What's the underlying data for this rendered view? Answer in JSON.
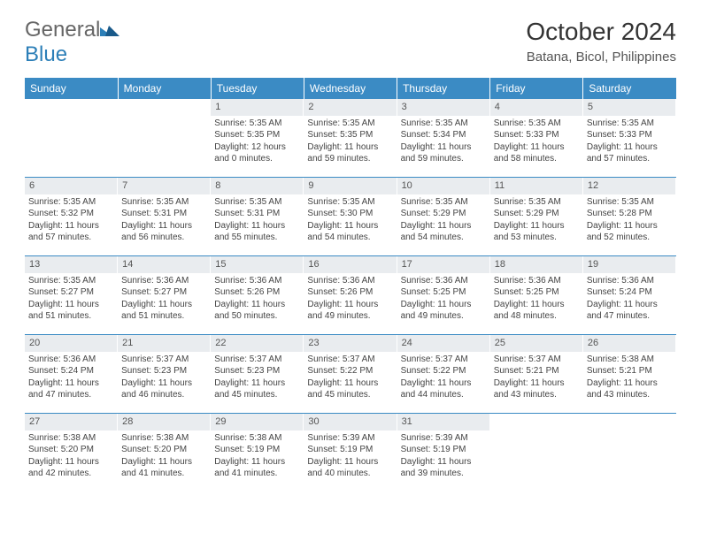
{
  "logo": {
    "text_general": "General",
    "text_blue": "Blue"
  },
  "title": "October 2024",
  "location": "Batana, Bicol, Philippines",
  "colors": {
    "header_bg": "#3b8bc4",
    "header_text": "#ffffff",
    "daynum_bg": "#e9ecef",
    "border": "#3b8bc4",
    "body_text": "#444"
  },
  "weekdays": [
    "Sunday",
    "Monday",
    "Tuesday",
    "Wednesday",
    "Thursday",
    "Friday",
    "Saturday"
  ],
  "weeks": [
    [
      null,
      null,
      {
        "n": "1",
        "sr": "Sunrise: 5:35 AM",
        "ss": "Sunset: 5:35 PM",
        "d1": "Daylight: 12 hours",
        "d2": "and 0 minutes."
      },
      {
        "n": "2",
        "sr": "Sunrise: 5:35 AM",
        "ss": "Sunset: 5:35 PM",
        "d1": "Daylight: 11 hours",
        "d2": "and 59 minutes."
      },
      {
        "n": "3",
        "sr": "Sunrise: 5:35 AM",
        "ss": "Sunset: 5:34 PM",
        "d1": "Daylight: 11 hours",
        "d2": "and 59 minutes."
      },
      {
        "n": "4",
        "sr": "Sunrise: 5:35 AM",
        "ss": "Sunset: 5:33 PM",
        "d1": "Daylight: 11 hours",
        "d2": "and 58 minutes."
      },
      {
        "n": "5",
        "sr": "Sunrise: 5:35 AM",
        "ss": "Sunset: 5:33 PM",
        "d1": "Daylight: 11 hours",
        "d2": "and 57 minutes."
      }
    ],
    [
      {
        "n": "6",
        "sr": "Sunrise: 5:35 AM",
        "ss": "Sunset: 5:32 PM",
        "d1": "Daylight: 11 hours",
        "d2": "and 57 minutes."
      },
      {
        "n": "7",
        "sr": "Sunrise: 5:35 AM",
        "ss": "Sunset: 5:31 PM",
        "d1": "Daylight: 11 hours",
        "d2": "and 56 minutes."
      },
      {
        "n": "8",
        "sr": "Sunrise: 5:35 AM",
        "ss": "Sunset: 5:31 PM",
        "d1": "Daylight: 11 hours",
        "d2": "and 55 minutes."
      },
      {
        "n": "9",
        "sr": "Sunrise: 5:35 AM",
        "ss": "Sunset: 5:30 PM",
        "d1": "Daylight: 11 hours",
        "d2": "and 54 minutes."
      },
      {
        "n": "10",
        "sr": "Sunrise: 5:35 AM",
        "ss": "Sunset: 5:29 PM",
        "d1": "Daylight: 11 hours",
        "d2": "and 54 minutes."
      },
      {
        "n": "11",
        "sr": "Sunrise: 5:35 AM",
        "ss": "Sunset: 5:29 PM",
        "d1": "Daylight: 11 hours",
        "d2": "and 53 minutes."
      },
      {
        "n": "12",
        "sr": "Sunrise: 5:35 AM",
        "ss": "Sunset: 5:28 PM",
        "d1": "Daylight: 11 hours",
        "d2": "and 52 minutes."
      }
    ],
    [
      {
        "n": "13",
        "sr": "Sunrise: 5:35 AM",
        "ss": "Sunset: 5:27 PM",
        "d1": "Daylight: 11 hours",
        "d2": "and 51 minutes."
      },
      {
        "n": "14",
        "sr": "Sunrise: 5:36 AM",
        "ss": "Sunset: 5:27 PM",
        "d1": "Daylight: 11 hours",
        "d2": "and 51 minutes."
      },
      {
        "n": "15",
        "sr": "Sunrise: 5:36 AM",
        "ss": "Sunset: 5:26 PM",
        "d1": "Daylight: 11 hours",
        "d2": "and 50 minutes."
      },
      {
        "n": "16",
        "sr": "Sunrise: 5:36 AM",
        "ss": "Sunset: 5:26 PM",
        "d1": "Daylight: 11 hours",
        "d2": "and 49 minutes."
      },
      {
        "n": "17",
        "sr": "Sunrise: 5:36 AM",
        "ss": "Sunset: 5:25 PM",
        "d1": "Daylight: 11 hours",
        "d2": "and 49 minutes."
      },
      {
        "n": "18",
        "sr": "Sunrise: 5:36 AM",
        "ss": "Sunset: 5:25 PM",
        "d1": "Daylight: 11 hours",
        "d2": "and 48 minutes."
      },
      {
        "n": "19",
        "sr": "Sunrise: 5:36 AM",
        "ss": "Sunset: 5:24 PM",
        "d1": "Daylight: 11 hours",
        "d2": "and 47 minutes."
      }
    ],
    [
      {
        "n": "20",
        "sr": "Sunrise: 5:36 AM",
        "ss": "Sunset: 5:24 PM",
        "d1": "Daylight: 11 hours",
        "d2": "and 47 minutes."
      },
      {
        "n": "21",
        "sr": "Sunrise: 5:37 AM",
        "ss": "Sunset: 5:23 PM",
        "d1": "Daylight: 11 hours",
        "d2": "and 46 minutes."
      },
      {
        "n": "22",
        "sr": "Sunrise: 5:37 AM",
        "ss": "Sunset: 5:23 PM",
        "d1": "Daylight: 11 hours",
        "d2": "and 45 minutes."
      },
      {
        "n": "23",
        "sr": "Sunrise: 5:37 AM",
        "ss": "Sunset: 5:22 PM",
        "d1": "Daylight: 11 hours",
        "d2": "and 45 minutes."
      },
      {
        "n": "24",
        "sr": "Sunrise: 5:37 AM",
        "ss": "Sunset: 5:22 PM",
        "d1": "Daylight: 11 hours",
        "d2": "and 44 minutes."
      },
      {
        "n": "25",
        "sr": "Sunrise: 5:37 AM",
        "ss": "Sunset: 5:21 PM",
        "d1": "Daylight: 11 hours",
        "d2": "and 43 minutes."
      },
      {
        "n": "26",
        "sr": "Sunrise: 5:38 AM",
        "ss": "Sunset: 5:21 PM",
        "d1": "Daylight: 11 hours",
        "d2": "and 43 minutes."
      }
    ],
    [
      {
        "n": "27",
        "sr": "Sunrise: 5:38 AM",
        "ss": "Sunset: 5:20 PM",
        "d1": "Daylight: 11 hours",
        "d2": "and 42 minutes."
      },
      {
        "n": "28",
        "sr": "Sunrise: 5:38 AM",
        "ss": "Sunset: 5:20 PM",
        "d1": "Daylight: 11 hours",
        "d2": "and 41 minutes."
      },
      {
        "n": "29",
        "sr": "Sunrise: 5:38 AM",
        "ss": "Sunset: 5:19 PM",
        "d1": "Daylight: 11 hours",
        "d2": "and 41 minutes."
      },
      {
        "n": "30",
        "sr": "Sunrise: 5:39 AM",
        "ss": "Sunset: 5:19 PM",
        "d1": "Daylight: 11 hours",
        "d2": "and 40 minutes."
      },
      {
        "n": "31",
        "sr": "Sunrise: 5:39 AM",
        "ss": "Sunset: 5:19 PM",
        "d1": "Daylight: 11 hours",
        "d2": "and 39 minutes."
      },
      null,
      null
    ]
  ]
}
